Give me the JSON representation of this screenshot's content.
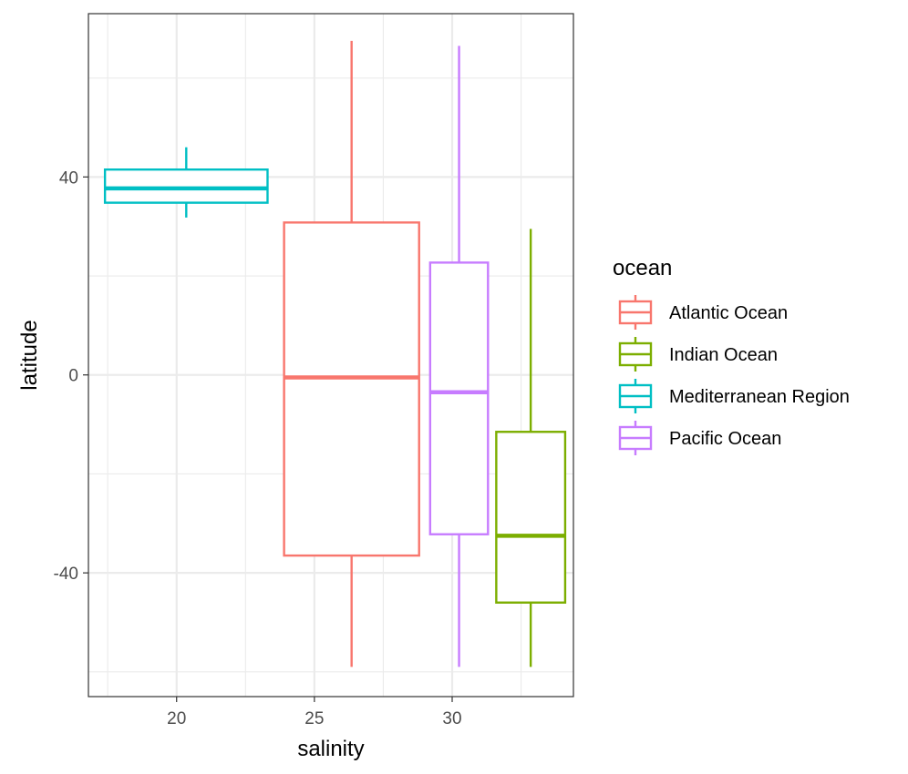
{
  "chart_data": {
    "type": "boxplot",
    "xlabel": "salinity",
    "ylabel": "latitude",
    "xlim": [
      16.8,
      34.4
    ],
    "ylim": [
      -65,
      73
    ],
    "x_ticks": [
      20,
      25,
      30
    ],
    "x_tick_labels": [
      "20",
      "25",
      "30"
    ],
    "y_ticks": [
      -40,
      0,
      40
    ],
    "y_tick_labels": [
      "-40",
      "0",
      "40"
    ],
    "grid": true,
    "legend": {
      "title": "ocean",
      "placement": "right",
      "entries": [
        "Atlantic Ocean",
        "Indian Ocean",
        "Mediterranean Region",
        "Pacific Ocean"
      ]
    },
    "series": [
      {
        "name": "Atlantic Ocean",
        "color": "#F8766D",
        "x_min": 23.9,
        "x_max": 28.8,
        "whisker_low": -59,
        "q1": -36.5,
        "median": -0.5,
        "q3": 30.8,
        "whisker_high": 67.5
      },
      {
        "name": "Indian Ocean",
        "color": "#7CAE00",
        "x_min": 31.6,
        "x_max": 34.1,
        "whisker_low": -59,
        "q1": -46,
        "median": -32.5,
        "q3": -11.5,
        "whisker_high": 29.5
      },
      {
        "name": "Mediterranean Region",
        "color": "#00BFC4",
        "x_min": 17.4,
        "x_max": 23.3,
        "whisker_low": 31.8,
        "q1": 34.8,
        "median": 37.7,
        "q3": 41.5,
        "whisker_high": 46
      },
      {
        "name": "Pacific Ocean",
        "color": "#C77CFF",
        "x_min": 29.2,
        "x_max": 31.3,
        "whisker_low": -59,
        "q1": -32.2,
        "median": -3.5,
        "q3": 22.7,
        "whisker_high": 66.5
      }
    ]
  }
}
